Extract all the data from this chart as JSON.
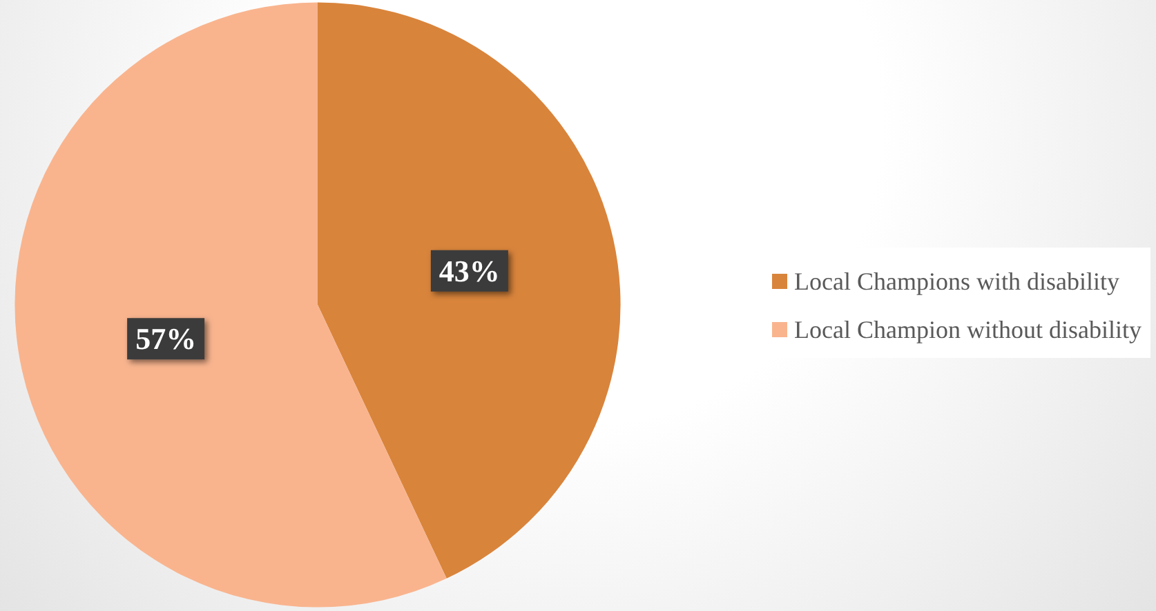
{
  "chart_data": {
    "type": "pie",
    "categories": [
      "Local Champions with disability",
      "Local Champion without disability"
    ],
    "values": [
      43,
      57
    ],
    "colors": [
      "#d9843b",
      "#f9b48e"
    ],
    "value_labels": [
      "43%",
      "57%"
    ],
    "legend": "right"
  }
}
